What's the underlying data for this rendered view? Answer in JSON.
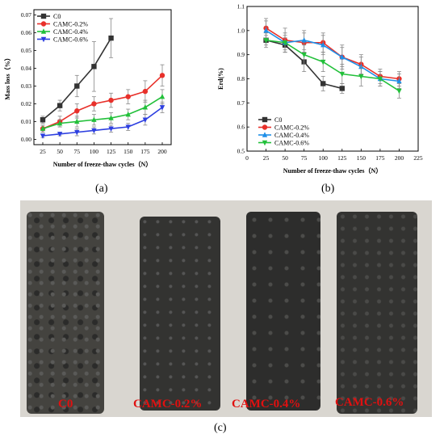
{
  "panel_labels": {
    "a": "(a)",
    "b": "(b)",
    "c": "(c)"
  },
  "chart_data": [
    {
      "type": "line",
      "ylabel": "Mass loss（%）",
      "xlabel": "Number of freeze-thaw cycles（N）",
      "x_ticks": [
        "25",
        "50",
        "75",
        "100",
        "125",
        "150",
        "175",
        "200"
      ],
      "y_ticks": [
        "0.00",
        "0.01",
        "0.02",
        "0.03",
        "0.04",
        "0.05",
        "0.06",
        "0.07"
      ],
      "xlim": [
        12,
        213
      ],
      "ylim": [
        -0.003,
        0.073
      ],
      "legend_position": "top-left",
      "error_bars": true,
      "series": [
        {
          "name": "C0",
          "color": "#333333",
          "marker": "square",
          "x": [
            25,
            50,
            75,
            100,
            125
          ],
          "y": [
            0.011,
            0.019,
            0.03,
            0.041,
            0.057
          ],
          "err": [
            0.002,
            0.003,
            0.006,
            0.014,
            0.011
          ]
        },
        {
          "name": "CAMC-0.2%",
          "color": "#e8302a",
          "marker": "circle",
          "x": [
            25,
            50,
            75,
            100,
            125,
            150,
            175,
            200
          ],
          "y": [
            0.006,
            0.01,
            0.016,
            0.02,
            0.022,
            0.024,
            0.027,
            0.036
          ],
          "err": [
            0.002,
            0.003,
            0.004,
            0.004,
            0.004,
            0.004,
            0.006,
            0.006
          ]
        },
        {
          "name": "CAMC-0.4%",
          "color": "#22c03a",
          "marker": "triangle",
          "x": [
            25,
            50,
            75,
            100,
            125,
            150,
            175,
            200
          ],
          "y": [
            0.006,
            0.009,
            0.01,
            0.011,
            0.012,
            0.014,
            0.018,
            0.024
          ],
          "err": [
            0.002,
            0.002,
            0.003,
            0.003,
            0.003,
            0.003,
            0.004,
            0.004
          ]
        },
        {
          "name": "CAMC-0.6%",
          "color": "#2d3fe0",
          "marker": "down-triangle",
          "x": [
            25,
            50,
            75,
            100,
            125,
            150,
            175,
            200
          ],
          "y": [
            0.002,
            0.003,
            0.004,
            0.005,
            0.006,
            0.007,
            0.011,
            0.018
          ],
          "err": [
            0.001,
            0.001,
            0.002,
            0.002,
            0.002,
            0.002,
            0.003,
            0.003
          ]
        }
      ]
    },
    {
      "type": "line",
      "ylabel": "Erd(%)",
      "xlabel": "Number of freeze-thaw cycles（N）",
      "x_ticks": [
        "0",
        "25",
        "50",
        "75",
        "100",
        "125",
        "150",
        "175",
        "200",
        "225"
      ],
      "y_ticks": [
        "0.5",
        "0.6",
        "0.7",
        "0.8",
        "0.9",
        "1.0",
        "1.1"
      ],
      "xlim": [
        0,
        225
      ],
      "ylim": [
        0.5,
        1.1
      ],
      "legend_position": "bottom-left",
      "error_bars": true,
      "series": [
        {
          "name": "C0",
          "color": "#333333",
          "marker": "square",
          "x": [
            25,
            50,
            75,
            100,
            125
          ],
          "y": [
            0.96,
            0.94,
            0.87,
            0.78,
            0.76
          ],
          "err": [
            0.02,
            0.03,
            0.04,
            0.03,
            0.02
          ]
        },
        {
          "name": "CAMC-0.2%",
          "color": "#e8302a",
          "marker": "circle",
          "x": [
            25,
            50,
            75,
            100,
            125,
            150,
            175,
            200
          ],
          "y": [
            1.01,
            0.96,
            0.95,
            0.95,
            0.89,
            0.86,
            0.81,
            0.8
          ],
          "err": [
            0.04,
            0.05,
            0.04,
            0.04,
            0.05,
            0.04,
            0.03,
            0.03
          ]
        },
        {
          "name": "CAMC-0.4%",
          "color": "#1f8fe8",
          "marker": "triangle",
          "x": [
            25,
            50,
            75,
            100,
            125,
            150,
            175,
            200
          ],
          "y": [
            1.0,
            0.95,
            0.96,
            0.94,
            0.89,
            0.85,
            0.8,
            0.79
          ],
          "err": [
            0.04,
            0.04,
            0.04,
            0.04,
            0.04,
            0.04,
            0.03,
            0.03
          ]
        },
        {
          "name": "CAMC-0.6%",
          "color": "#22c03a",
          "marker": "down-triangle",
          "x": [
            25,
            50,
            75,
            100,
            125,
            150,
            175,
            200
          ],
          "y": [
            0.96,
            0.95,
            0.9,
            0.87,
            0.82,
            0.81,
            0.8,
            0.75
          ],
          "err": [
            0.03,
            0.03,
            0.04,
            0.04,
            0.04,
            0.04,
            0.03,
            0.03
          ]
        }
      ]
    }
  ],
  "photo_labels": [
    "C0",
    "CAMC-0.2%",
    "CAMC-0.4%",
    "CAMC-0.6%"
  ]
}
